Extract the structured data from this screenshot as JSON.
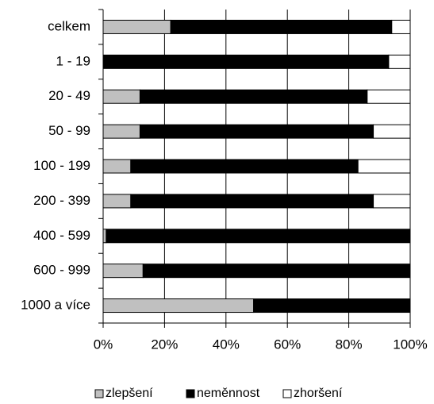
{
  "chart_data": {
    "type": "stacked_hbar_100",
    "categories": [
      "celkem",
      "1 - 19",
      "20 - 49",
      "50 - 99",
      "100 - 199",
      "200 - 399",
      "400 - 599",
      "600 - 999",
      "1000 a více"
    ],
    "series": [
      {
        "name": "zlepšení",
        "color": "#c0c0c0",
        "values": [
          22,
          0,
          12,
          12,
          9,
          9,
          1,
          13,
          49
        ]
      },
      {
        "name": "neměnnost",
        "color": "#000000",
        "values": [
          72,
          93,
          74,
          76,
          74,
          79,
          99,
          87,
          51
        ]
      },
      {
        "name": "zhoršení",
        "color": "#ffffff",
        "values": [
          6,
          7,
          14,
          12,
          17,
          12,
          0,
          0,
          0
        ]
      }
    ],
    "xlim": [
      0,
      100
    ],
    "xticks": [
      {
        "value": 0,
        "label": "0%"
      },
      {
        "value": 20,
        "label": "20%"
      },
      {
        "value": 40,
        "label": "40%"
      },
      {
        "value": 60,
        "label": "60%"
      },
      {
        "value": 80,
        "label": "80%"
      },
      {
        "value": 100,
        "label": "100%"
      }
    ],
    "grid": true,
    "legend": "bottom"
  }
}
